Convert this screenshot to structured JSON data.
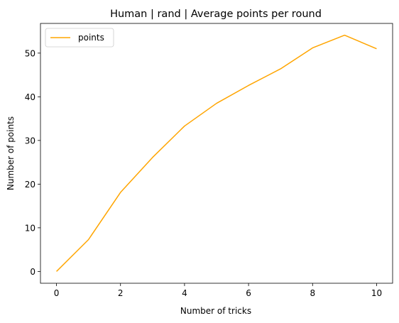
{
  "chart_data": {
    "type": "line",
    "title": "Human | rand | Average points per round",
    "xlabel": "Number of tricks",
    "ylabel": "Number of points",
    "x": [
      0,
      1,
      2,
      3,
      4,
      5,
      6,
      7,
      8,
      9,
      10
    ],
    "series": [
      {
        "name": "points",
        "color": "#ffa500",
        "values": [
          0,
          7.3,
          18.1,
          26.1,
          33.3,
          38.5,
          42.6,
          46.4,
          51.2,
          54.1,
          51.0
        ]
      }
    ],
    "xlim": [
      -0.5,
      10.5
    ],
    "ylim": [
      -2.7,
      56.8
    ],
    "xticks": [
      0,
      2,
      4,
      6,
      8,
      10
    ],
    "yticks": [
      0,
      10,
      20,
      30,
      40,
      50
    ],
    "grid": false,
    "legend_position": "upper left"
  }
}
